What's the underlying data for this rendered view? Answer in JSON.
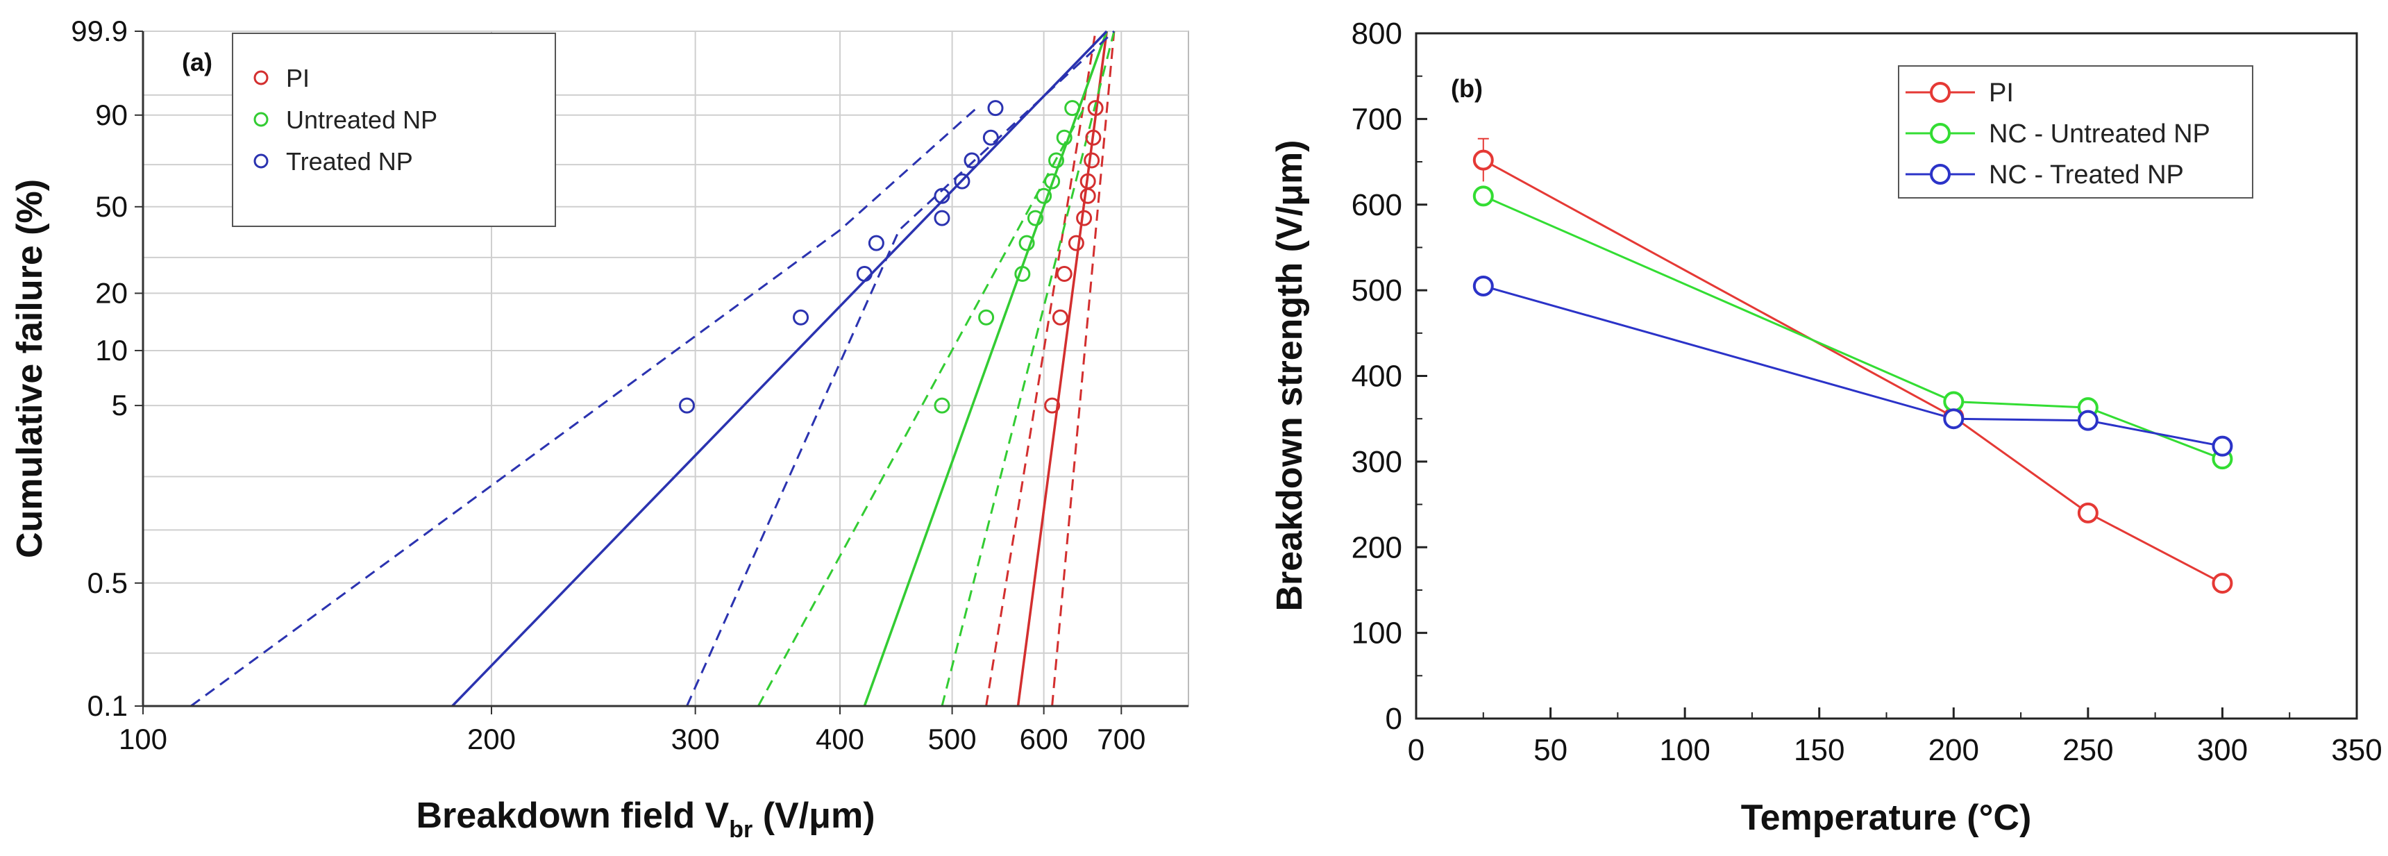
{
  "chart_data": [
    {
      "type": "scatter",
      "panel_label": "(a)",
      "xlabel_main": "Breakdown field V",
      "xlabel_sub": "br",
      "xlabel_unit": " (V/μm)",
      "ylabel": "Cumulative failure (%)",
      "x_scale": "log",
      "y_scale": "weibull",
      "xlim": [
        100,
        800
      ],
      "ylim": [
        0.1,
        99.9
      ],
      "x_ticks": [
        100,
        200,
        300,
        400,
        500,
        600,
        700
      ],
      "x_tick_labels": [
        "100",
        "200",
        "300",
        "400",
        "500",
        "600",
        "700"
      ],
      "y_ticks": [
        0.1,
        0.5,
        5,
        10,
        20,
        50,
        90,
        99.9
      ],
      "y_tick_labels": [
        "0.1",
        "0.5",
        "5",
        "10",
        "20",
        "50",
        "90",
        "99.9"
      ],
      "legend": [
        "PI",
        "Untreated NP",
        "Treated NP"
      ],
      "legend_position": "top-left",
      "grid": true,
      "series": [
        {
          "name": "PI",
          "color": "#d32f2f",
          "points": [
            [
              610,
              5
            ],
            [
              620,
              15
            ],
            [
              625,
              25
            ],
            [
              640,
              35
            ],
            [
              650,
              45
            ],
            [
              655,
              55
            ],
            [
              655,
              62
            ],
            [
              660,
              72
            ],
            [
              662,
              82
            ],
            [
              665,
              92
            ]
          ],
          "fit": [
            [
              570,
              0.1
            ],
            [
              680,
              99.9
            ]
          ],
          "ci_lower": [
            [
              535,
              0.1
            ],
            [
              665,
              99.9
            ]
          ],
          "ci_upper": [
            [
              610,
              0.1
            ],
            [
              690,
              99.9
            ]
          ]
        },
        {
          "name": "Untreated NP",
          "color": "#33cc33",
          "points": [
            [
              490,
              5
            ],
            [
              535,
              15
            ],
            [
              575,
              25
            ],
            [
              580,
              35
            ],
            [
              590,
              45
            ],
            [
              600,
              55
            ],
            [
              610,
              62
            ],
            [
              615,
              72
            ],
            [
              625,
              82
            ],
            [
              635,
              92
            ]
          ],
          "fit": [
            [
              420,
              0.1
            ],
            [
              680,
              99.9
            ]
          ],
          "ci_lower": [
            [
              340,
              0.1
            ],
            [
              650,
              92
            ]
          ],
          "ci_upper": [
            [
              490,
              0.1
            ],
            [
              690,
              99.9
            ]
          ]
        },
        {
          "name": "Treated NP",
          "color": "#2b33b0",
          "points": [
            [
              295,
              5
            ],
            [
              370,
              15
            ],
            [
              420,
              25
            ],
            [
              430,
              35
            ],
            [
              490,
              45
            ],
            [
              490,
              55
            ],
            [
              510,
              62
            ],
            [
              520,
              72
            ],
            [
              540,
              82
            ],
            [
              545,
              92
            ]
          ],
          "fit": [
            [
              185,
              0.1
            ],
            [
              680,
              99.9
            ]
          ],
          "ci_lower": [
            [
              110,
              0.1
            ],
            [
              400,
              40
            ],
            [
              525,
              92
            ]
          ],
          "ci_upper": [
            [
              295,
              0.1
            ],
            [
              450,
              40
            ],
            [
              690,
              99.9
            ]
          ]
        }
      ]
    },
    {
      "type": "line",
      "panel_label": "(b)",
      "xlabel": "Temperature (°C)",
      "ylabel": "Breakdown strength (V/μm)",
      "xlim": [
        0,
        350
      ],
      "ylim": [
        0,
        800
      ],
      "x_ticks": [
        0,
        50,
        100,
        150,
        200,
        250,
        300,
        350
      ],
      "y_ticks": [
        0,
        100,
        200,
        300,
        400,
        500,
        600,
        700,
        800
      ],
      "x": [
        25,
        200,
        250,
        300
      ],
      "legend": [
        "PI",
        "NC - Untreated NP",
        "NC - Treated NP"
      ],
      "legend_position": "top-right",
      "grid": false,
      "series": [
        {
          "name": "PI",
          "color": "#e53935",
          "values": [
            652,
            352,
            240,
            158
          ],
          "errors": [
            25,
            0,
            0,
            0
          ]
        },
        {
          "name": "NC - Untreated NP",
          "color": "#33dd33",
          "values": [
            610,
            370,
            363,
            303
          ],
          "errors": [
            0,
            0,
            0,
            0
          ]
        },
        {
          "name": "NC - Treated NP",
          "color": "#2b33c8",
          "values": [
            505,
            350,
            348,
            318
          ],
          "errors": [
            0,
            0,
            0,
            0
          ]
        }
      ]
    }
  ]
}
